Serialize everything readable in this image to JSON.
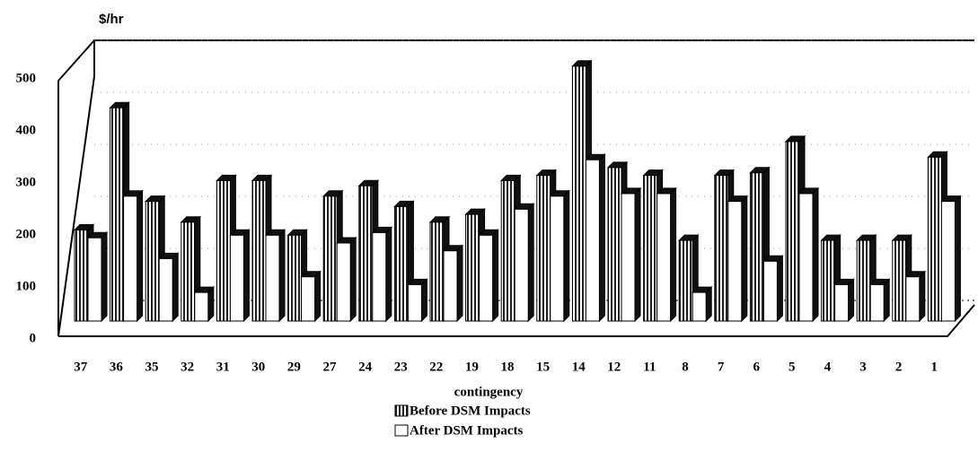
{
  "chart_data": {
    "type": "bar3d",
    "y_label": "$/hr",
    "x_label": "contingency",
    "categories": [
      "37",
      "36",
      "35",
      "32",
      "31",
      "30",
      "29",
      "27",
      "24",
      "23",
      "22",
      "19",
      "18",
      "15",
      "14",
      "12",
      "11",
      "8",
      "7",
      "6",
      "5",
      "4",
      "3",
      "2",
      "1"
    ],
    "series": [
      {
        "name": "Before DSM Impacts",
        "color": "#222222",
        "values": [
          175,
          410,
          230,
          190,
          270,
          270,
          165,
          240,
          260,
          220,
          190,
          205,
          270,
          280,
          490,
          295,
          280,
          155,
          280,
          285,
          345,
          155,
          155,
          155,
          315
        ]
      },
      {
        "name": "After DSM Impacts",
        "color": "#ffffff",
        "values": [
          160,
          240,
          120,
          55,
          165,
          165,
          85,
          150,
          170,
          70,
          135,
          165,
          215,
          240,
          310,
          245,
          245,
          55,
          230,
          115,
          245,
          70,
          70,
          85,
          230
        ]
      }
    ],
    "ylim": [
      0,
      500
    ],
    "yticks": [
      0,
      100,
      200,
      300,
      400,
      500
    ],
    "grid": true
  }
}
